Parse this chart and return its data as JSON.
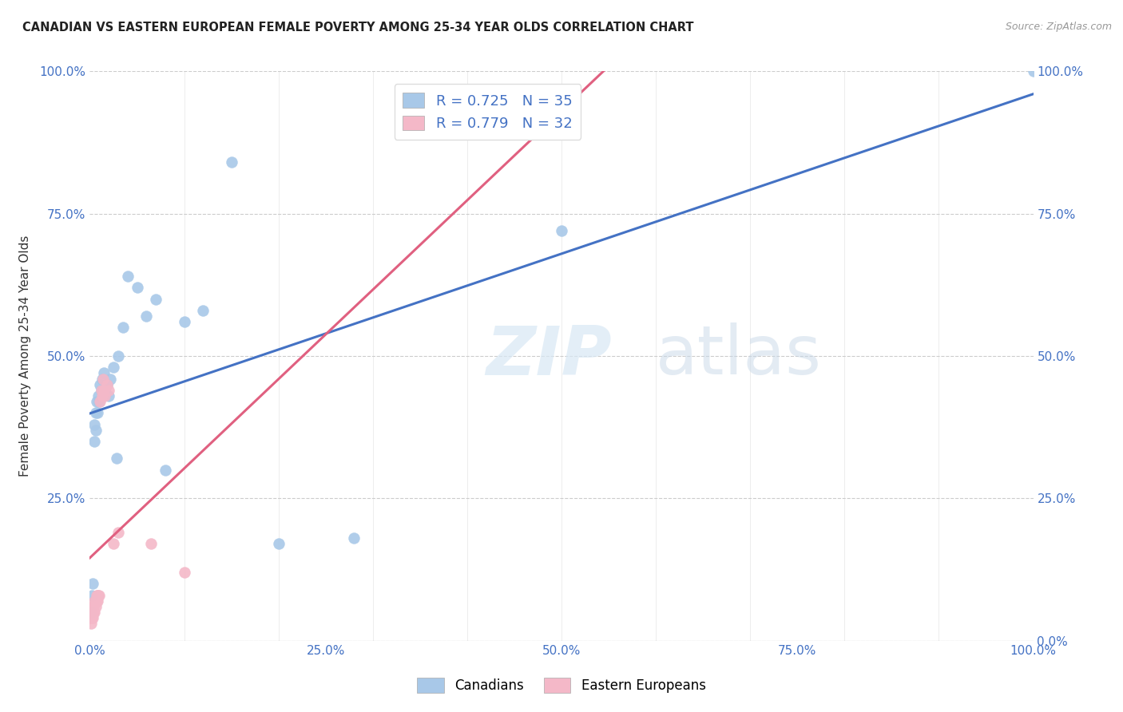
{
  "title": "CANADIAN VS EASTERN EUROPEAN FEMALE POVERTY AMONG 25-34 YEAR OLDS CORRELATION CHART",
  "source": "Source: ZipAtlas.com",
  "ylabel": "Female Poverty Among 25-34 Year Olds",
  "watermark_zip": "ZIP",
  "watermark_atlas": "atlas",
  "canadians": {
    "R": 0.725,
    "N": 35,
    "color": "#a8c8e8",
    "color_line": "#4472c4",
    "label": "Canadians",
    "x": [
      0.001,
      0.002,
      0.003,
      0.005,
      0.005,
      0.006,
      0.006,
      0.007,
      0.008,
      0.009,
      0.01,
      0.011,
      0.012,
      0.013,
      0.015,
      0.016,
      0.018,
      0.02,
      0.022,
      0.025,
      0.028,
      0.03,
      0.035,
      0.04,
      0.05,
      0.06,
      0.07,
      0.08,
      0.1,
      0.12,
      0.15,
      0.2,
      0.28,
      0.5,
      1.0
    ],
    "y": [
      0.05,
      0.08,
      0.1,
      0.35,
      0.38,
      0.37,
      0.4,
      0.42,
      0.4,
      0.43,
      0.42,
      0.45,
      0.44,
      0.46,
      0.47,
      0.44,
      0.45,
      0.43,
      0.46,
      0.48,
      0.32,
      0.5,
      0.55,
      0.64,
      0.62,
      0.57,
      0.6,
      0.3,
      0.56,
      0.58,
      0.84,
      0.17,
      0.18,
      0.72,
      1.0
    ]
  },
  "eastern_europeans": {
    "R": 0.779,
    "N": 32,
    "color": "#f4b8c8",
    "color_line": "#e06080",
    "label": "Eastern Europeans",
    "x": [
      0.001,
      0.001,
      0.001,
      0.002,
      0.002,
      0.002,
      0.003,
      0.003,
      0.004,
      0.004,
      0.005,
      0.005,
      0.006,
      0.006,
      0.007,
      0.007,
      0.008,
      0.008,
      0.009,
      0.01,
      0.011,
      0.012,
      0.013,
      0.014,
      0.015,
      0.016,
      0.018,
      0.02,
      0.025,
      0.03,
      0.065,
      0.1
    ],
    "y": [
      0.03,
      0.04,
      0.05,
      0.04,
      0.05,
      0.06,
      0.04,
      0.05,
      0.05,
      0.06,
      0.05,
      0.07,
      0.06,
      0.07,
      0.07,
      0.08,
      0.07,
      0.08,
      0.08,
      0.08,
      0.42,
      0.44,
      0.43,
      0.46,
      0.44,
      0.43,
      0.45,
      0.44,
      0.17,
      0.19,
      0.17,
      0.12
    ]
  },
  "xlim": [
    0.0,
    1.0
  ],
  "ylim": [
    0.0,
    1.0
  ],
  "xticks": [
    0.0,
    0.25,
    0.5,
    0.75,
    1.0
  ],
  "yticks": [
    0.0,
    0.25,
    0.5,
    0.75,
    1.0
  ],
  "xticklabels": [
    "0.0%",
    "25.0%",
    "50.0%",
    "75.0%",
    "100.0%"
  ],
  "left_yticklabels": [
    "",
    "25.0%",
    "50.0%",
    "75.0%",
    "100.0%"
  ],
  "right_yticklabels": [
    "0.0%",
    "25.0%",
    "50.0%",
    "75.0%",
    "100.0%"
  ],
  "grid_color": "#cccccc",
  "background_color": "#ffffff",
  "title_color": "#222222",
  "axis_tick_color": "#4472c4",
  "marker_size": 100,
  "legend_r_color": "#4472c4",
  "legend_n_color": "#4472c4"
}
